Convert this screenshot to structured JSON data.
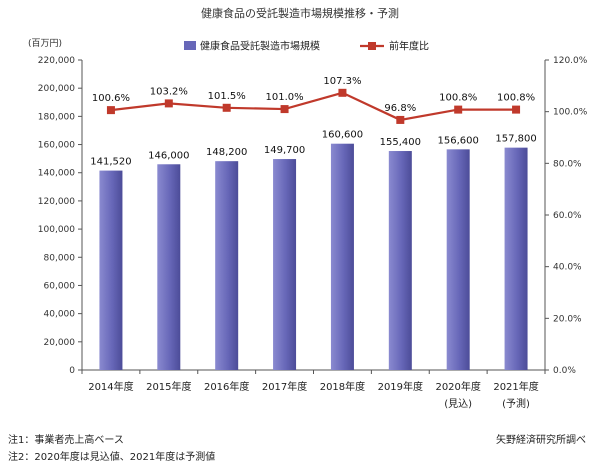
{
  "chart_data": {
    "type": "bar",
    "title": "健康食品の受託製造市場規模推移・予測",
    "y_unit_label": "(百万円)",
    "categories": [
      "2014年度",
      "2015年度",
      "2016年度",
      "2017年度",
      "2018年度",
      "2019年度",
      "2020年度",
      "2021年度"
    ],
    "category_sublabels": [
      "",
      "",
      "",
      "",
      "",
      "",
      "(見込)",
      "(予測)"
    ],
    "series": [
      {
        "name": "健康食品受託製造市場規模",
        "type": "bar",
        "axis": "left",
        "color": "#6767b8",
        "values": [
          141520,
          146000,
          148200,
          149700,
          160600,
          155400,
          156600,
          157800
        ],
        "labels": [
          "141,520",
          "146,000",
          "148,200",
          "149,700",
          "160,600",
          "155,400",
          "156,600",
          "157,800"
        ]
      },
      {
        "name": "前年度比",
        "type": "line",
        "axis": "right",
        "color": "#c0392b",
        "values": [
          100.6,
          103.2,
          101.5,
          101.0,
          107.3,
          96.8,
          100.8,
          100.8
        ],
        "labels": [
          "100.6%",
          "103.2%",
          "101.5%",
          "101.0%",
          "107.3%",
          "96.8%",
          "100.8%",
          "100.8%"
        ]
      }
    ],
    "y_left": {
      "min": 0,
      "max": 220000,
      "step": 20000,
      "ticks": [
        "0",
        "20,000",
        "40,000",
        "60,000",
        "80,000",
        "100,000",
        "120,000",
        "140,000",
        "160,000",
        "180,000",
        "200,000",
        "220,000"
      ]
    },
    "y_right": {
      "min": 0,
      "max": 120,
      "step": 20,
      "ticks": [
        "0.0%",
        "20.0%",
        "40.0%",
        "60.0%",
        "80.0%",
        "100.0%",
        "120.0%"
      ]
    },
    "grid": false,
    "legend": "top"
  },
  "footer": {
    "note1": "注1：事業者売上高ベース",
    "note2": "注2：2020年度は見込値、2021年度は予測値",
    "source": "矢野経済研究所調べ"
  }
}
